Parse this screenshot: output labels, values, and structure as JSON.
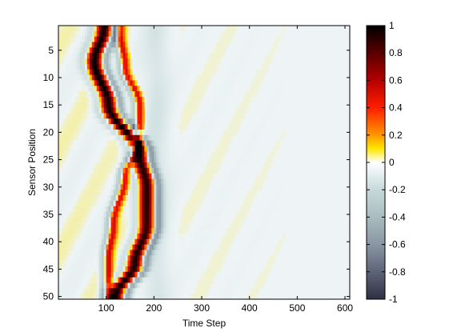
{
  "chart_data": {
    "type": "heatmap",
    "title": "",
    "xlabel": "Time Step",
    "ylabel": "Sensor Position",
    "xlim": [
      0,
      610
    ],
    "ylim": [
      0.5,
      50.5
    ],
    "y_reversed": true,
    "grid": false,
    "x_ticks": [
      100,
      200,
      300,
      400,
      500,
      600
    ],
    "y_ticks": [
      5,
      10,
      15,
      20,
      25,
      30,
      35,
      40,
      45,
      50
    ],
    "rows": 50,
    "time_step_range": [
      0,
      600
    ],
    "colormap": "hot-to-bone diverging (black-red-yellow-white for positive, white-gray-dark for negative)",
    "colorbar": {
      "range": [
        -1,
        1
      ],
      "ticks": [
        "1",
        "0.8",
        "0.6",
        "0.4",
        "0.2",
        "0",
        "-0.2",
        "-0.4",
        "-0.6",
        "-0.8",
        "-1"
      ]
    },
    "features": [
      {
        "description": "primary positive wave packet",
        "peak_time_at_sensor": [
          [
            1,
            95
          ],
          [
            7,
            75
          ],
          [
            15,
            105
          ],
          [
            24,
            170
          ],
          [
            30,
            185
          ],
          [
            37,
            185
          ],
          [
            44,
            160
          ],
          [
            50,
            120
          ]
        ]
      },
      {
        "description": "secondary crossing positive band",
        "peak_time_at_sensor": [
          [
            2,
            130
          ],
          [
            8,
            140
          ],
          [
            15,
            170
          ],
          [
            22,
            170
          ],
          [
            28,
            140
          ],
          [
            37,
            115
          ],
          [
            43,
            105
          ]
        ]
      }
    ]
  },
  "colors": {
    "background": "#ffffff",
    "field_base": "#eef4f5"
  }
}
